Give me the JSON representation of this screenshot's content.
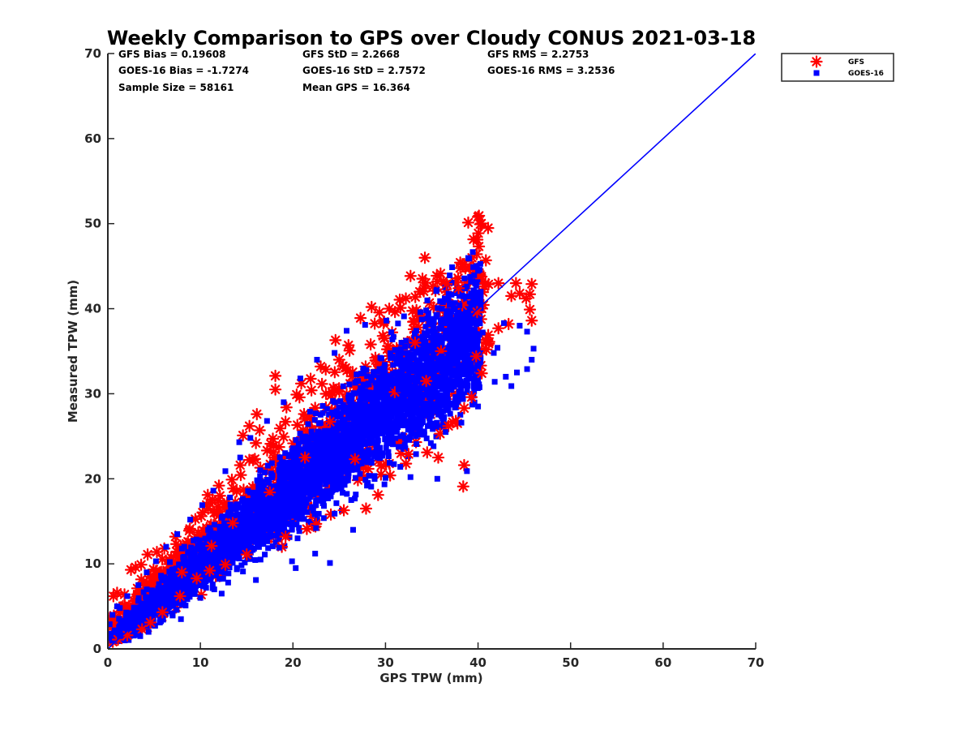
{
  "chart_data": {
    "type": "scatter",
    "title": "Weekly Comparison to GPS over Cloudy CONUS 2021-03-18",
    "xlabel": "GPS TPW (mm)",
    "ylabel": "Measured TPW (mm)",
    "xlim": [
      0,
      70
    ],
    "ylim": [
      0,
      70
    ],
    "xticks": [
      "0",
      "10",
      "20",
      "30",
      "40",
      "50",
      "60",
      "70"
    ],
    "yticks": [
      "0",
      "10",
      "20",
      "30",
      "40",
      "50",
      "60",
      "70"
    ],
    "grid": false,
    "legend_position": "outside-top-right",
    "stats": [
      [
        "GFS Bias = 0.19608",
        "GFS StD = 2.2668",
        "GFS RMS = 2.2753"
      ],
      [
        "GOES-16 Bias = -1.7274",
        "GOES-16 StD = 2.7572",
        "GOES-16 RMS = 3.2536"
      ],
      [
        "Sample Size = 58161",
        "Mean GPS = 16.364"
      ]
    ],
    "reference_line": {
      "x": [
        0,
        70
      ],
      "y": [
        0,
        70
      ],
      "color": "#0000ff"
    },
    "series": [
      {
        "name": "GFS",
        "marker": "asterisk",
        "color": "#ff0000",
        "points": [
          [
            0.2,
            3.6
          ],
          [
            0.6,
            6.2
          ],
          [
            1.0,
            6.6
          ],
          [
            1.8,
            6.4
          ],
          [
            2.5,
            9.3
          ],
          [
            3.0,
            9.6
          ],
          [
            3.6,
            9.9
          ],
          [
            4.3,
            11.1
          ],
          [
            5.3,
            11.4
          ],
          [
            6.1,
            11.8
          ],
          [
            7.3,
            13.2
          ],
          [
            8.8,
            13.9
          ],
          [
            10.1,
            15.6
          ],
          [
            10.8,
            18.1
          ],
          [
            12.0,
            19.2
          ],
          [
            13.4,
            19.9
          ],
          [
            14.3,
            21.6
          ],
          [
            14.6,
            25.1
          ],
          [
            15.3,
            26.2
          ],
          [
            16.1,
            27.6
          ],
          [
            16.4,
            25.7
          ],
          [
            16.0,
            24.2
          ],
          [
            18.1,
            32.1
          ],
          [
            18.1,
            30.5
          ],
          [
            19.2,
            26.7
          ],
          [
            20.4,
            29.9
          ],
          [
            20.9,
            31.2
          ],
          [
            22.0,
            30.4
          ],
          [
            23.0,
            33.2
          ],
          [
            24.6,
            36.3
          ],
          [
            25.0,
            34.0
          ],
          [
            26.0,
            35.7
          ],
          [
            27.3,
            38.9
          ],
          [
            28.5,
            40.2
          ],
          [
            30.4,
            40.0
          ],
          [
            32.2,
            41.2
          ],
          [
            33.7,
            42.0
          ],
          [
            35.6,
            43.2
          ],
          [
            36.6,
            42.9
          ],
          [
            37.9,
            42.4
          ],
          [
            38.3,
            40.4
          ],
          [
            40.8,
            43.0
          ],
          [
            42.2,
            43.0
          ],
          [
            43.6,
            41.5
          ],
          [
            44.5,
            41.8
          ],
          [
            45.2,
            41.2
          ],
          [
            45.6,
            41.7
          ],
          [
            45.8,
            42.9
          ],
          [
            45.6,
            39.9
          ],
          [
            45.8,
            38.6
          ],
          [
            43.3,
            38.2
          ],
          [
            42.2,
            37.7
          ],
          [
            41.1,
            36.9
          ],
          [
            40.9,
            35.2
          ],
          [
            40.4,
            32.4
          ],
          [
            39.3,
            29.6
          ],
          [
            38.5,
            28.3
          ],
          [
            37.6,
            26.8
          ],
          [
            36.8,
            26.2
          ],
          [
            35.9,
            25.3
          ],
          [
            35.7,
            22.5
          ],
          [
            38.5,
            21.6
          ],
          [
            38.4,
            19.1
          ],
          [
            34.5,
            23.1
          ],
          [
            32.5,
            22.9
          ],
          [
            30.5,
            20.4
          ],
          [
            29.2,
            18.1
          ],
          [
            27.9,
            16.5
          ],
          [
            25.5,
            16.3
          ],
          [
            24.1,
            15.8
          ],
          [
            22.5,
            14.7
          ],
          [
            21.5,
            14.1
          ],
          [
            19.2,
            13.2
          ],
          [
            18.8,
            12.0
          ],
          [
            15.0,
            11.1
          ],
          [
            12.7,
            9.9
          ],
          [
            11.0,
            9.2
          ],
          [
            9.6,
            8.3
          ],
          [
            7.8,
            6.2
          ],
          [
            5.9,
            4.3
          ],
          [
            4.6,
            3.1
          ],
          [
            3.7,
            2.3
          ],
          [
            2.1,
            1.6
          ],
          [
            1.1,
            1.1
          ],
          [
            28.4,
            35.8
          ],
          [
            31.0,
            30.2
          ],
          [
            33.2,
            36.0
          ],
          [
            36.0,
            35.0
          ],
          [
            34.4,
            31.5
          ],
          [
            26.7,
            22.3
          ],
          [
            24.0,
            26.7
          ],
          [
            21.3,
            22.5
          ],
          [
            17.5,
            18.4
          ],
          [
            13.5,
            14.8
          ],
          [
            11.2,
            12.1
          ],
          [
            8.0,
            9.0
          ],
          [
            41.2,
            36.1
          ],
          [
            39.8,
            34.4
          ],
          [
            44.1,
            43.0
          ],
          [
            39.9,
            39.6
          ]
        ]
      },
      {
        "name": "GOES-16",
        "marker": "square",
        "color": "#0000ff",
        "points": [
          [
            0.2,
            2.9
          ],
          [
            0.5,
            4.0
          ],
          [
            1.0,
            5.0
          ],
          [
            1.3,
            1.5
          ],
          [
            2.0,
            2.4
          ],
          [
            3.0,
            3.2
          ],
          [
            3.5,
            1.5
          ],
          [
            4.4,
            2.0
          ],
          [
            5.6,
            3.1
          ],
          [
            7.0,
            4.0
          ],
          [
            8.4,
            5.1
          ],
          [
            10.0,
            6.0
          ],
          [
            11.5,
            7.0
          ],
          [
            13.0,
            7.8
          ],
          [
            14.6,
            9.1
          ],
          [
            16.5,
            10.5
          ],
          [
            18.5,
            11.9
          ],
          [
            20.5,
            13.0
          ],
          [
            22.5,
            14.2
          ],
          [
            24.5,
            15.9
          ],
          [
            26.3,
            17.5
          ],
          [
            28.0,
            19.2
          ],
          [
            30.0,
            20.1
          ],
          [
            31.6,
            21.4
          ],
          [
            33.3,
            22.9
          ],
          [
            34.9,
            24.2
          ],
          [
            36.5,
            25.5
          ],
          [
            38.2,
            26.6
          ],
          [
            40.0,
            28.5
          ],
          [
            41.8,
            31.4
          ],
          [
            43.0,
            32.0
          ],
          [
            44.2,
            32.5
          ],
          [
            45.3,
            32.9
          ],
          [
            46.0,
            35.3
          ],
          [
            45.8,
            34.0
          ],
          [
            45.3,
            37.3
          ],
          [
            44.5,
            38.0
          ],
          [
            42.8,
            38.3
          ],
          [
            42.1,
            35.4
          ],
          [
            40.5,
            37.2
          ],
          [
            39.3,
            38.6
          ],
          [
            38.0,
            40.4
          ],
          [
            36.4,
            41.2
          ],
          [
            34.4,
            39.8
          ],
          [
            32.0,
            39.1
          ],
          [
            30.1,
            38.6
          ],
          [
            27.8,
            38.1
          ],
          [
            25.8,
            37.4
          ],
          [
            24.5,
            34.8
          ],
          [
            22.6,
            34.0
          ],
          [
            20.8,
            31.8
          ],
          [
            19.0,
            29.0
          ],
          [
            17.2,
            26.8
          ],
          [
            15.4,
            24.8
          ],
          [
            14.3,
            22.5
          ],
          [
            12.7,
            20.9
          ],
          [
            11.4,
            18.6
          ],
          [
            10.2,
            16.9
          ],
          [
            8.9,
            15.2
          ],
          [
            7.5,
            13.5
          ],
          [
            6.3,
            12.0
          ],
          [
            5.2,
            10.3
          ],
          [
            4.2,
            9.0
          ],
          [
            3.3,
            7.5
          ],
          [
            2.1,
            6.2
          ],
          [
            1.3,
            4.8
          ],
          [
            5.0,
            5.5
          ],
          [
            7.5,
            8.0
          ],
          [
            10.0,
            10.5
          ],
          [
            12.5,
            12.8
          ],
          [
            15.0,
            15.2
          ],
          [
            17.5,
            17.7
          ],
          [
            20.0,
            20.1
          ],
          [
            22.5,
            22.4
          ],
          [
            25.0,
            24.7
          ],
          [
            27.5,
            27.0
          ],
          [
            30.0,
            29.2
          ],
          [
            32.5,
            31.5
          ],
          [
            35.0,
            33.6
          ],
          [
            37.5,
            35.4
          ],
          [
            39.5,
            36.9
          ],
          [
            9.0,
            9.4
          ],
          [
            11.8,
            11.0
          ],
          [
            14.1,
            13.9
          ],
          [
            16.9,
            16.0
          ],
          [
            19.4,
            18.4
          ],
          [
            21.8,
            21.0
          ],
          [
            24.3,
            23.5
          ],
          [
            26.8,
            25.9
          ],
          [
            29.1,
            28.3
          ],
          [
            31.4,
            30.5
          ],
          [
            33.7,
            32.6
          ],
          [
            36.1,
            34.4
          ],
          [
            23.4,
            25.3
          ],
          [
            28.9,
            31.3
          ],
          [
            17.8,
            20.4
          ],
          [
            13.2,
            17.8
          ],
          [
            18.1,
            14.6
          ],
          [
            29.0,
            23.4
          ],
          [
            35.0,
            29.6
          ],
          [
            14.2,
            24.3
          ],
          [
            21.0,
            24.7
          ],
          [
            4.2,
            7.0
          ],
          [
            6.7,
            10.2
          ],
          [
            8.0,
            11.8
          ],
          [
            40.1,
            31.1
          ],
          [
            38.8,
            20.9
          ],
          [
            35.6,
            20.0
          ],
          [
            32.7,
            20.2
          ],
          [
            26.5,
            14.0
          ],
          [
            24.0,
            10.1
          ],
          [
            22.4,
            11.2
          ],
          [
            20.3,
            9.5
          ],
          [
            19.9,
            10.3
          ],
          [
            16.0,
            8.1
          ],
          [
            12.3,
            6.5
          ],
          [
            7.9,
            3.5
          ],
          [
            43.6,
            30.9
          ],
          [
            41.7,
            34.8
          ]
        ]
      }
    ]
  }
}
